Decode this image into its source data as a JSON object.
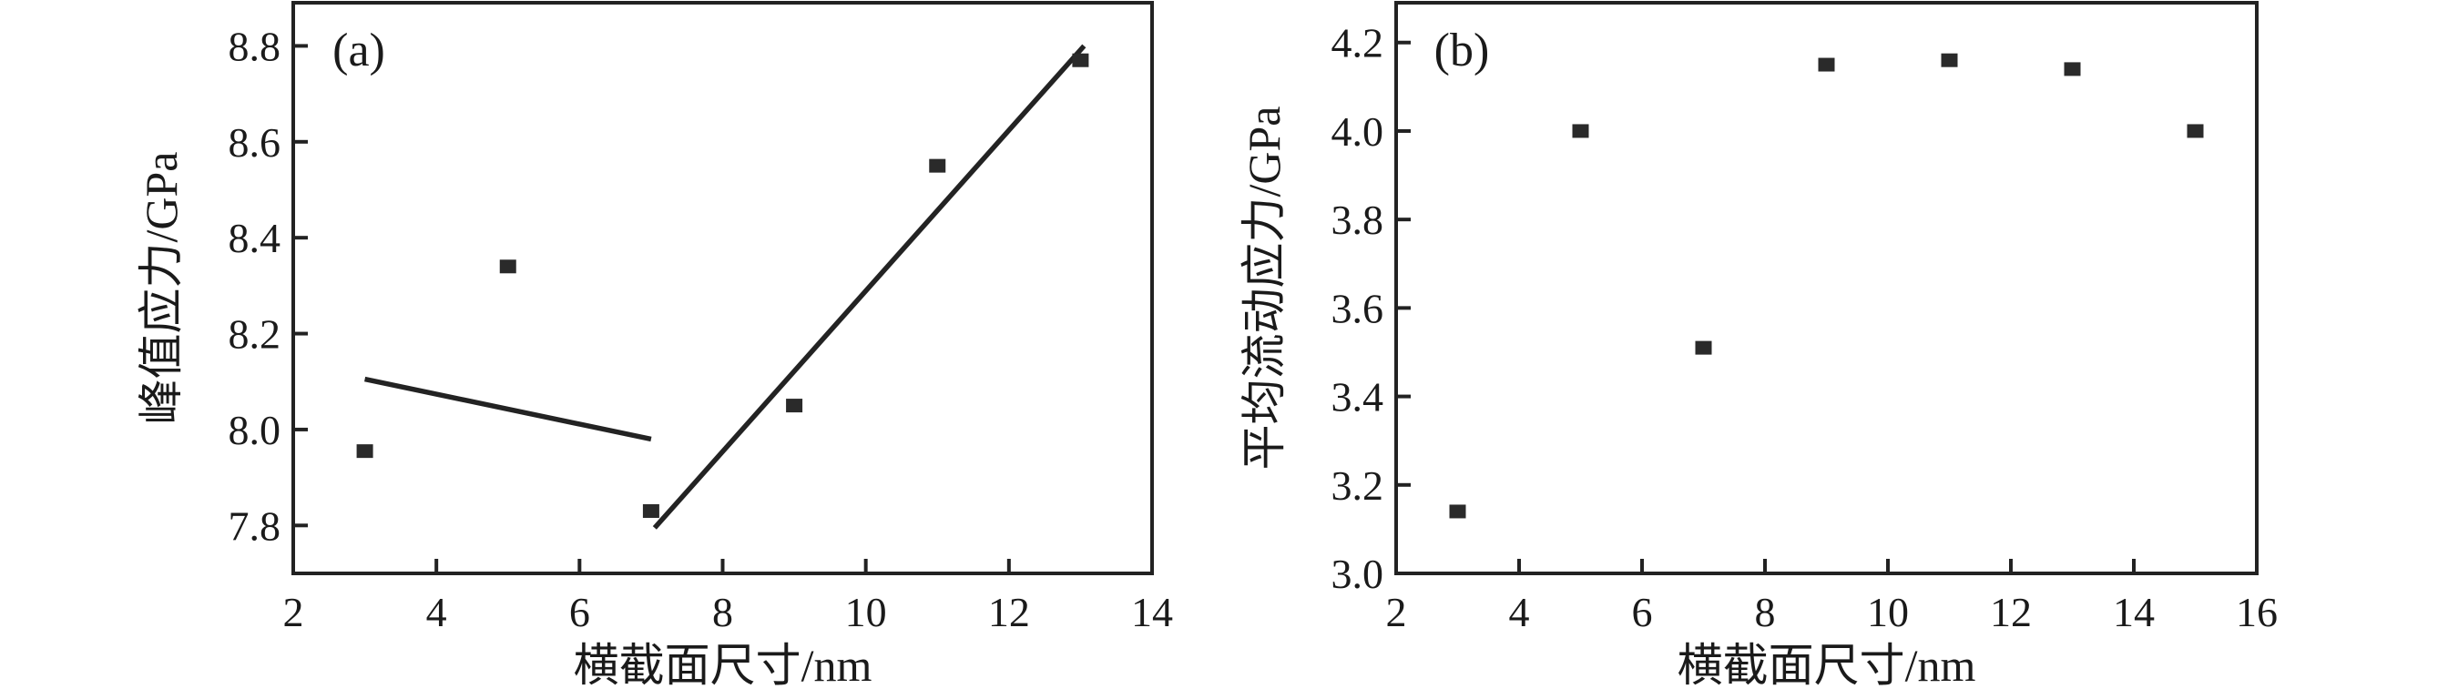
{
  "figure": {
    "background": "#ffffff",
    "text_color": "#1a1a1a",
    "axis_color": "#222222",
    "marker_color": "#2a2a2a",
    "line_color": "#232323"
  },
  "chart_data": [
    {
      "type": "scatter",
      "panel_label": "(a)",
      "xlabel": "横截面尺寸/nm",
      "ylabel": "峰值应力/GPa",
      "xlim": [
        2,
        14
      ],
      "ylim": [
        7.7,
        8.89
      ],
      "xticks": [
        2,
        4,
        6,
        8,
        10,
        12,
        14
      ],
      "yticks": [
        7.8,
        8.0,
        8.2,
        8.4,
        8.6,
        8.8
      ],
      "ytick_decimals": 1,
      "grid": false,
      "frame": true,
      "tick_direction": "in",
      "legend": "none",
      "marker_shape": "square",
      "points": [
        [
          3,
          7.955
        ],
        [
          5,
          8.34
        ],
        [
          7,
          7.83
        ],
        [
          9,
          8.05
        ],
        [
          11,
          8.55
        ],
        [
          13,
          8.77
        ]
      ],
      "fit_lines": [
        {
          "from": [
            3.0,
            8.105
          ],
          "to": [
            7.0,
            7.98
          ]
        },
        {
          "from": [
            7.05,
            7.795
          ],
          "to": [
            13.05,
            8.8
          ]
        }
      ]
    },
    {
      "type": "scatter",
      "panel_label": "(b)",
      "xlabel": "横截面尺寸/nm",
      "ylabel": "平均流动应力/GPa",
      "xlim": [
        2,
        16
      ],
      "ylim": [
        3.0,
        4.29
      ],
      "xticks": [
        2,
        4,
        6,
        8,
        10,
        12,
        14,
        16
      ],
      "yticks": [
        3.0,
        3.2,
        3.4,
        3.6,
        3.8,
        4.0,
        4.2
      ],
      "ytick_decimals": 1,
      "grid": false,
      "frame": true,
      "tick_direction": "in",
      "legend": "none",
      "marker_shape": "square",
      "points": [
        [
          3,
          3.14
        ],
        [
          5,
          4.0
        ],
        [
          7,
          3.51
        ],
        [
          9,
          4.15
        ],
        [
          11,
          4.16
        ],
        [
          13,
          4.14
        ],
        [
          15,
          4.0
        ]
      ],
      "fit_lines": []
    }
  ]
}
